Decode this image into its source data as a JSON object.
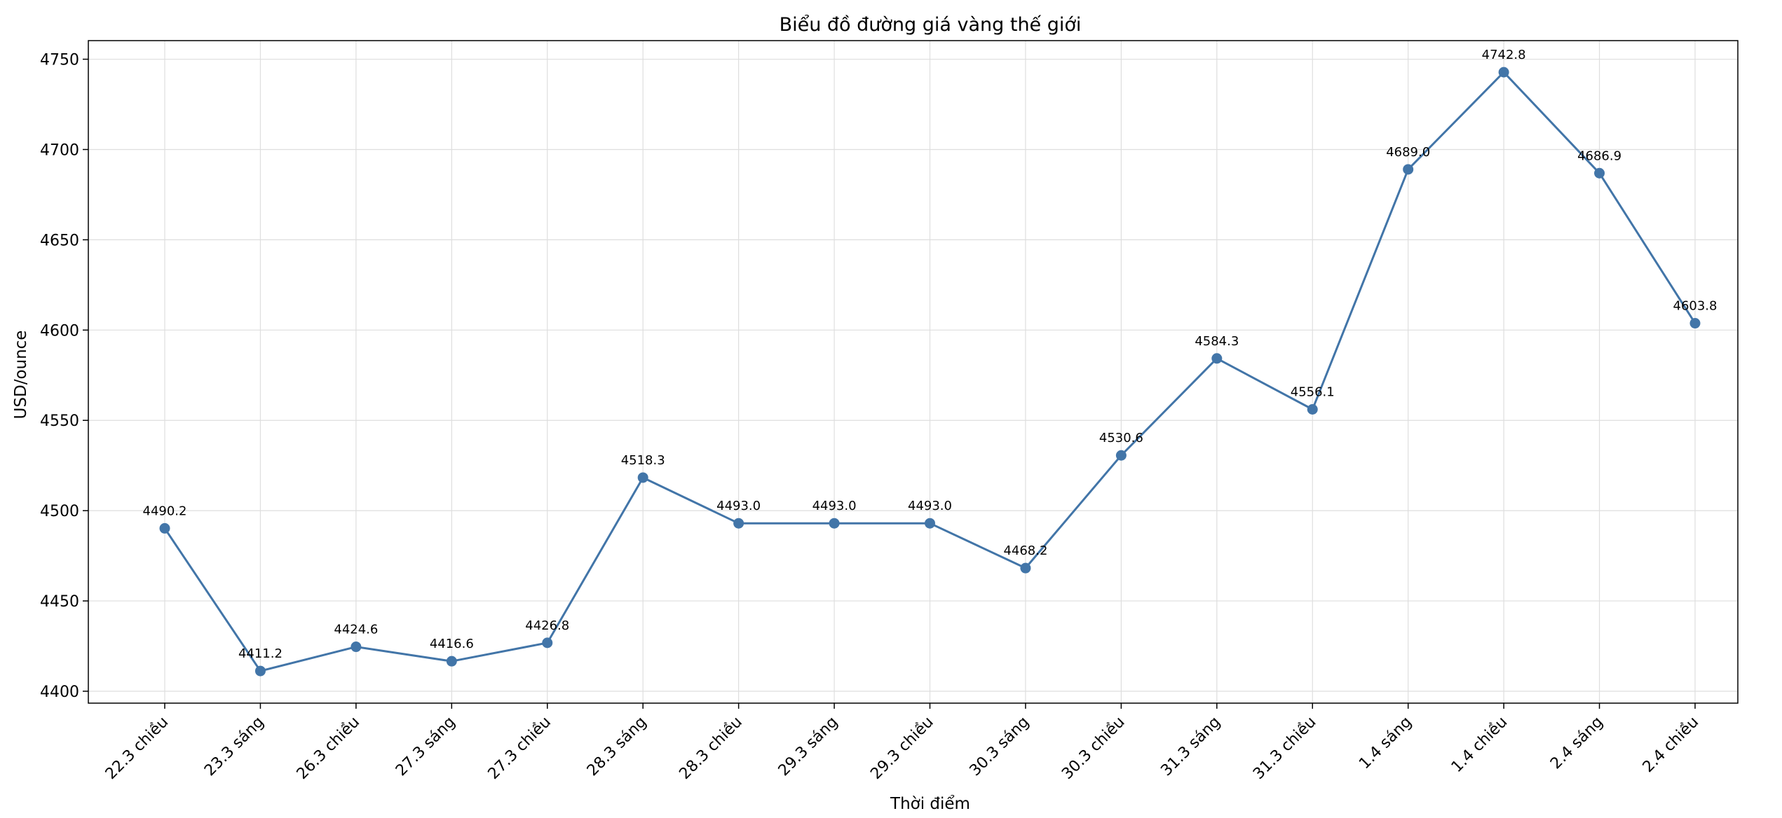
{
  "chart_data": {
    "type": "line",
    "title": "Biểu đồ đường giá vàng thế giới",
    "xlabel": "Thời điểm",
    "ylabel": "USD/ounce",
    "categories": [
      "22.3 chiều",
      "23.3 sáng",
      "26.3 chiều",
      "27.3 sáng",
      "27.3 chiều",
      "28.3 sáng",
      "28.3 chiều",
      "29.3 sáng",
      "29.3 chiều",
      "30.3 sáng",
      "30.3 chiều",
      "31.3 sáng",
      "31.3 chiều",
      "1.4 sáng",
      "1.4 chiều",
      "2.4 sáng",
      "2.4 chiều"
    ],
    "series": [
      {
        "name": "Giá vàng",
        "color": "#4275a8",
        "values": [
          4490.2,
          4411.2,
          4424.6,
          4416.6,
          4426.8,
          4518.3,
          4493.0,
          4493.0,
          4493.0,
          4468.2,
          4530.6,
          4584.3,
          4556.1,
          4689.0,
          4742.8,
          4686.9,
          4603.8
        ],
        "labels": [
          "4490.2",
          "4411.2",
          "4424.6",
          "4416.6",
          "4426.8",
          "4518.3",
          "4493.0",
          "4493.0",
          "4493.0",
          "4468.2",
          "4530.6",
          "4584.3",
          "4556.1",
          "4689.0",
          "4742.8",
          "4686.9",
          "4603.8"
        ]
      }
    ],
    "yticks": [
      4400,
      4450,
      4500,
      4550,
      4600,
      4650,
      4700,
      4750
    ],
    "ylim": [
      4393.4,
      4760.3
    ],
    "grid": true,
    "legend": "none"
  }
}
